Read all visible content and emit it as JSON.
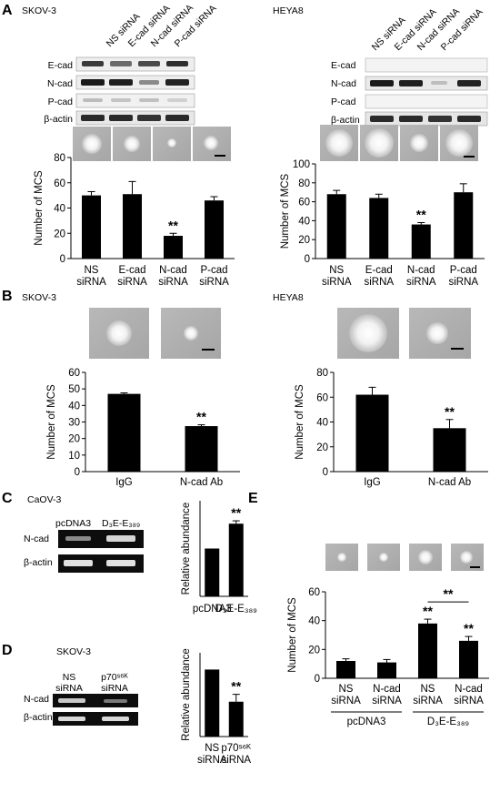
{
  "panels": {
    "A": "A",
    "B": "B",
    "C": "C",
    "D": "D",
    "E": "E"
  },
  "cells": {
    "A_left": "SKOV-3",
    "A_right": "HEYA8",
    "B_left": "SKOV-3",
    "B_right": "HEYA8",
    "C": "CaOV-3",
    "D": "SKOV-3"
  },
  "blots": {
    "A_left": {
      "lanes": [
        "NS siRNA",
        "E-cad siRNA",
        "N-cad siRNA",
        "P-cad siRNA"
      ],
      "rows": [
        "E-cad",
        "N-cad",
        "P-cad",
        "β-actin"
      ]
    },
    "A_right": {
      "lanes": [
        "NS siRNA",
        "E-cad siRNA",
        "N-cad siRNA",
        "P-cad siRNA"
      ],
      "rows": [
        "E-cad",
        "N-cad",
        "P-cad",
        "β-actin"
      ]
    },
    "C": {
      "lanes": [
        "pcDNA3",
        "D₃E-E₃₈₉"
      ],
      "rows": [
        "N-cad",
        "β-actin"
      ]
    },
    "D": {
      "lanes": [
        [
          "NS",
          "siRNA"
        ],
        [
          "p70ˢ⁶ᴷ",
          "siRNA"
        ]
      ],
      "rows": [
        "N-cad",
        "β-actin"
      ]
    }
  },
  "chart_data": [
    {
      "id": "A_left",
      "type": "bar",
      "ylabel": "Number of MCS",
      "ylim": [
        0,
        80
      ],
      "yticks": [
        0,
        20,
        40,
        60,
        80
      ],
      "categories": [
        [
          "NS",
          "siRNA"
        ],
        [
          "E-cad",
          "siRNA"
        ],
        [
          "N-cad",
          "siRNA"
        ],
        [
          "P-cad",
          "siRNA"
        ]
      ],
      "values": [
        50,
        51,
        18,
        46
      ],
      "errors": [
        3,
        10,
        2,
        3
      ],
      "annotations": [
        "",
        "",
        "**",
        ""
      ]
    },
    {
      "id": "A_right",
      "type": "bar",
      "ylabel": "Number of MCS",
      "ylim": [
        0,
        100
      ],
      "yticks": [
        0,
        20,
        40,
        60,
        80,
        100
      ],
      "categories": [
        [
          "NS",
          "siRNA"
        ],
        [
          "E-cad",
          "siRNA"
        ],
        [
          "N-cad",
          "siRNA"
        ],
        [
          "P-cad",
          "siRNA"
        ]
      ],
      "values": [
        68,
        64,
        36,
        70
      ],
      "errors": [
        4,
        4,
        2,
        9
      ],
      "annotations": [
        "",
        "",
        "**",
        ""
      ]
    },
    {
      "id": "B_left",
      "type": "bar",
      "ylabel": "Number of MCS",
      "ylim": [
        0,
        60
      ],
      "yticks": [
        0,
        10,
        20,
        30,
        40,
        50,
        60
      ],
      "categories": [
        [
          "IgG"
        ],
        [
          "N-cad Ab"
        ]
      ],
      "values": [
        47,
        27.5
      ],
      "errors": [
        0.6,
        0.8
      ],
      "annotations": [
        "",
        "**"
      ]
    },
    {
      "id": "B_right",
      "type": "bar",
      "ylabel": "Number of MCS",
      "ylim": [
        0,
        80
      ],
      "yticks": [
        0,
        20,
        40,
        60,
        80
      ],
      "categories": [
        [
          "IgG"
        ],
        [
          "N-cad Ab"
        ]
      ],
      "values": [
        62,
        35
      ],
      "errors": [
        6,
        7
      ],
      "annotations": [
        "",
        "**"
      ]
    },
    {
      "id": "C",
      "type": "bar",
      "ylabel": "Relative abundance",
      "ylim": [
        0,
        2
      ],
      "yticks": [],
      "categories": [
        [
          "pcDNA3"
        ],
        [
          "D₃E-E₃₈₉"
        ]
      ],
      "values": [
        1.0,
        1.52
      ],
      "errors": [
        0,
        0.06
      ],
      "annotations": [
        "",
        "**"
      ]
    },
    {
      "id": "D",
      "type": "bar",
      "ylabel": "Relative abundance",
      "ylim": [
        0,
        1.25
      ],
      "yticks": [],
      "categories": [
        [
          "NS",
          "siRNA"
        ],
        [
          "p70ˢ⁶ᴷ",
          "siRNA"
        ]
      ],
      "values": [
        1.0,
        0.52
      ],
      "errors": [
        0,
        0.11
      ],
      "annotations": [
        "",
        "**"
      ]
    },
    {
      "id": "E",
      "type": "bar",
      "ylabel": "Number of MCS",
      "ylim": [
        0,
        60
      ],
      "yticks": [
        0,
        20,
        40,
        60
      ],
      "categories": [
        [
          "NS",
          "siRNA"
        ],
        [
          "N-cad",
          "siRNA"
        ],
        [
          "NS",
          "siRNA"
        ],
        [
          "N-cad",
          "siRNA"
        ]
      ],
      "values": [
        12,
        11,
        38,
        26
      ],
      "errors": [
        1.5,
        2,
        3,
        3
      ],
      "annotations": [
        "",
        "",
        "**",
        "**"
      ],
      "groups": [
        "pcDNA3",
        "D₃E-E₃₈₉"
      ],
      "bracket": "**"
    }
  ]
}
